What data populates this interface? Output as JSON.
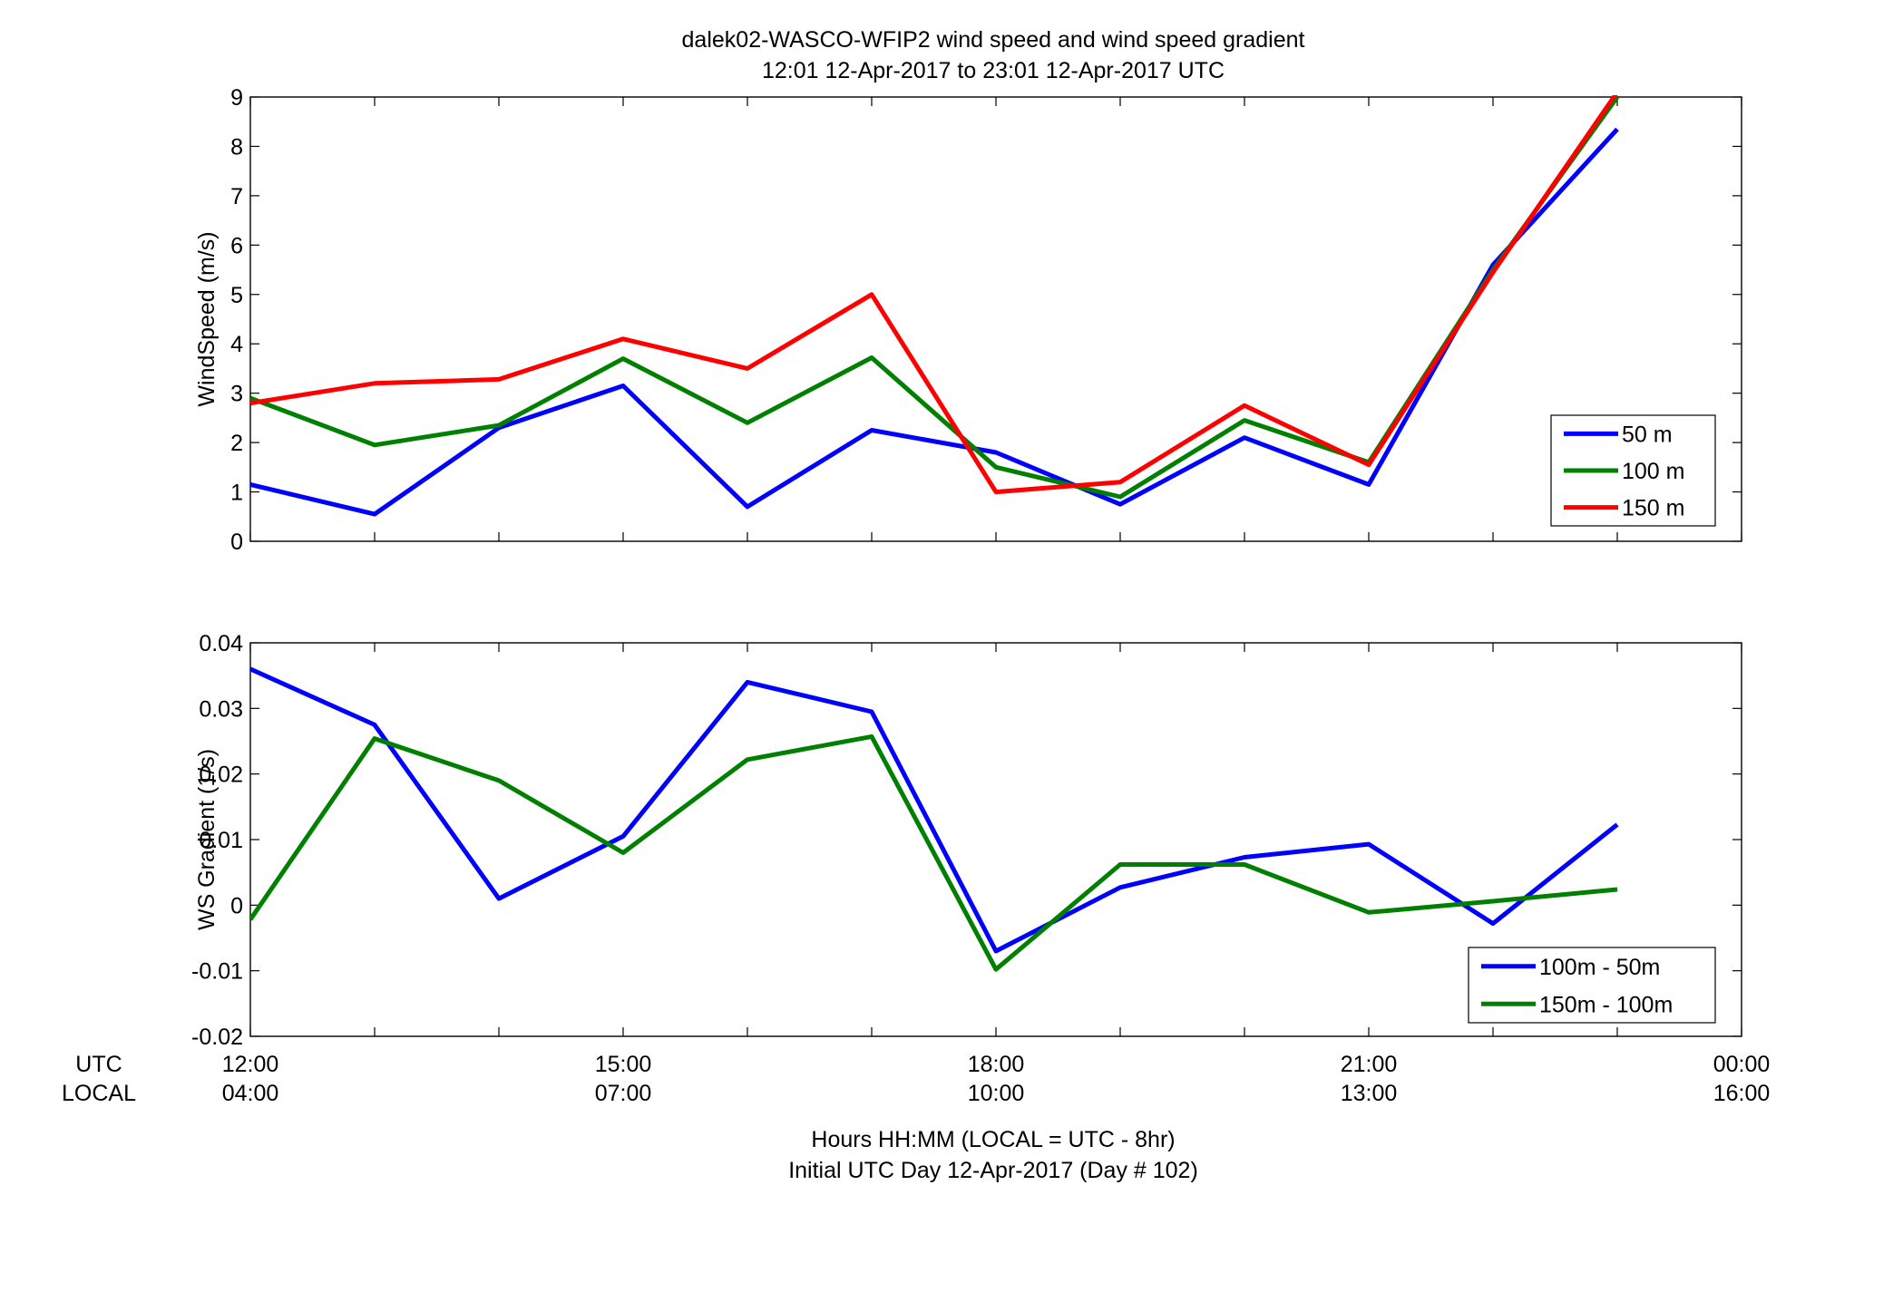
{
  "title_line1": "dalek02-WASCO-WFIP2  wind speed and wind speed gradient",
  "title_line2": "12:01 12-Apr-2017 to 23:01 12-Apr-2017  UTC",
  "xaxis": {
    "row_label_utc": "UTC",
    "row_label_local": "LOCAL",
    "label_line1": "Hours HH:MM  (LOCAL = UTC - 8hr)",
    "label_line2": "Initial UTC Day 12-Apr-2017 (Day # 102)"
  },
  "chart_data": [
    {
      "type": "line",
      "ylabel": "WindSpeed (m/s)",
      "xlim": [
        12,
        24
      ],
      "ylim": [
        0,
        9
      ],
      "x_ticks": [
        12,
        15,
        18,
        21,
        24
      ],
      "x_tick_labels_utc": [
        "12:00",
        "15:00",
        "18:00",
        "21:00",
        "00:00"
      ],
      "x_tick_labels_local": [
        "04:00",
        "07:00",
        "10:00",
        "13:00",
        "16:00"
      ],
      "y_ticks": [
        0,
        1,
        2,
        3,
        4,
        5,
        6,
        7,
        8,
        9
      ],
      "y_tick_labels": [
        "0",
        "1",
        "2",
        "3",
        "4",
        "5",
        "6",
        "7",
        "8",
        "9"
      ],
      "legend_position": "bottom-right",
      "grid": false,
      "x": [
        12,
        13,
        14,
        15,
        16,
        17,
        18,
        19,
        20,
        21,
        22,
        23
      ],
      "series": [
        {
          "name": "50 m",
          "color": "#0000ff",
          "values": [
            1.15,
            0.55,
            2.3,
            3.15,
            0.7,
            2.25,
            1.8,
            0.75,
            2.1,
            1.15,
            5.6,
            8.35
          ]
        },
        {
          "name": "100 m",
          "color": "#008000",
          "values": [
            2.9,
            1.95,
            2.35,
            3.7,
            2.4,
            3.72,
            1.5,
            0.9,
            2.45,
            1.6,
            5.5,
            9.0
          ]
        },
        {
          "name": "150 m",
          "color": "#ff0000",
          "values": [
            2.8,
            3.2,
            3.28,
            4.1,
            3.5,
            5.0,
            1.0,
            1.2,
            2.75,
            1.55,
            5.45,
            9.1
          ]
        }
      ]
    },
    {
      "type": "line",
      "ylabel": "WS Gradient (1/s)",
      "xlim": [
        12,
        24
      ],
      "ylim": [
        -0.02,
        0.04
      ],
      "x_ticks": [
        12,
        15,
        18,
        21,
        24
      ],
      "x_tick_labels_utc": [
        "12:00",
        "15:00",
        "18:00",
        "21:00",
        "00:00"
      ],
      "x_tick_labels_local": [
        "04:00",
        "07:00",
        "10:00",
        "13:00",
        "16:00"
      ],
      "y_ticks": [
        -0.02,
        -0.01,
        0,
        0.01,
        0.02,
        0.03,
        0.04
      ],
      "y_tick_labels": [
        "-0.02",
        "-0.01",
        "0",
        "0.01",
        "0.02",
        "0.03",
        "0.04"
      ],
      "legend_position": "bottom-right",
      "grid": false,
      "x": [
        12,
        13,
        14,
        15,
        16,
        17,
        18,
        19,
        20,
        21,
        22,
        23
      ],
      "series": [
        {
          "name": "100m - 50m",
          "color": "#0000ff",
          "values": [
            0.036,
            0.0275,
            0.001,
            0.0105,
            0.034,
            0.0295,
            -0.007,
            0.0027,
            0.0073,
            0.0093,
            -0.0028,
            0.0123
          ]
        },
        {
          "name": "150m - 100m",
          "color": "#008000",
          "values": [
            -0.0022,
            0.0254,
            0.019,
            0.008,
            0.0222,
            0.0257,
            -0.0098,
            0.0062,
            0.0062,
            -0.0011,
            0.0006,
            0.0024
          ]
        }
      ]
    }
  ]
}
